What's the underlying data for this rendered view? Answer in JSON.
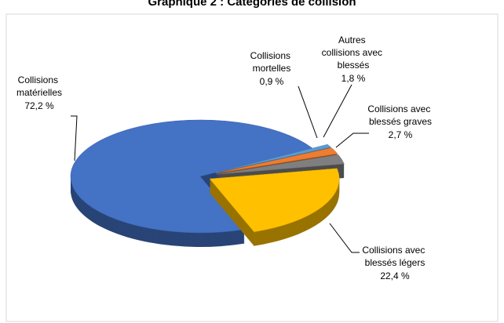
{
  "chart_data": {
    "type": "pie",
    "title": "Graphique 2 : Catégories de collision",
    "categories": [
      "Collisions matérielles",
      "Collisions mortelles",
      "Autres collisions avec blessés",
      "Collisions avec blessés graves",
      "Collisions avec blessés légers"
    ],
    "values": [
      72.2,
      0.9,
      1.8,
      2.7,
      22.4
    ],
    "value_labels": [
      "72,2 %",
      "0,9 %",
      "1,8 %",
      "2,7 %",
      "22,4 %"
    ],
    "colors": [
      "#4472c4",
      "#5b9bd5",
      "#ed7d31",
      "#7f7f7f",
      "#ffc000"
    ]
  }
}
